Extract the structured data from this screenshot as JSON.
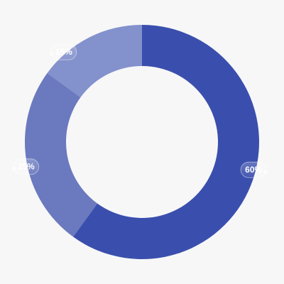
{
  "chart_data": {
    "type": "pie",
    "donut": true,
    "categories": [
      "",
      "",
      ""
    ],
    "values": [
      60,
      25,
      15
    ],
    "value_labels": [
      "60%",
      "25%",
      "15%"
    ],
    "start": "top",
    "direction": "clockwise",
    "colors": [
      "#3a4fad",
      "#6b79bf",
      "#8391cc"
    ],
    "title": "",
    "legend": "none"
  }
}
